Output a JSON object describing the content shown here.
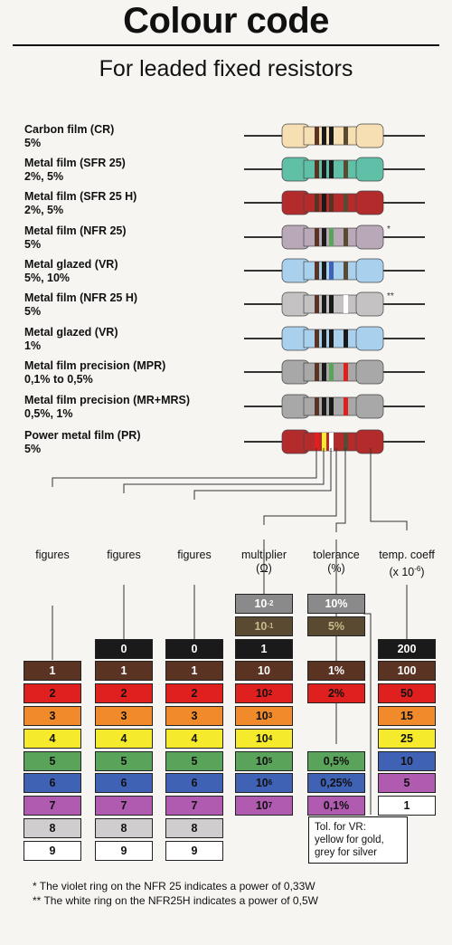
{
  "title": "Colour code",
  "subtitle": "For leaded fixed resistors",
  "colors": {
    "black": "#1a1a1a",
    "brown": "#5a3322",
    "red": "#e0201e",
    "orange": "#f08a2a",
    "yellow": "#f5ea2c",
    "green": "#5aa35a",
    "blue": "#3f62b5",
    "violet": "#b05ab0",
    "grey": "#cfcdcd",
    "white": "#ffffff",
    "silver": "#8a8a8a",
    "gold": "#5a4a32"
  },
  "resistors": [
    {
      "name": "Carbon film (CR)",
      "tol": "5%",
      "body": "#f6dfb2",
      "mark": ""
    },
    {
      "name": "Metal film (SFR 25)",
      "tol": "2%, 5%",
      "body": "#5fbfa7",
      "mark": ""
    },
    {
      "name": "Metal film (SFR 25 H)",
      "tol": "2%, 5%",
      "body": "#b32b2b",
      "mark": ""
    },
    {
      "name": "Metal film (NFR 25)",
      "tol": "5%",
      "body": "#b8a8b8",
      "mark": "*"
    },
    {
      "name": "Metal glazed (VR)",
      "tol": "5%, 10%",
      "body": "#a9d1ee",
      "mark": ""
    },
    {
      "name": "Metal film (NFR 25 H)",
      "tol": "5%",
      "body": "#c4c2c2",
      "mark": "**"
    },
    {
      "name": "Metal glazed (VR)",
      "tol": "1%",
      "body": "#a9d1ee",
      "mark": ""
    },
    {
      "name": "Metal film precision (MPR)",
      "tol": "0,1% to 0,5%",
      "body": "#a8a8a8",
      "mark": ""
    },
    {
      "name": "Metal film precision (MR+MRS)",
      "tol": "0,5%, 1%",
      "body": "#a8a8a8",
      "mark": ""
    },
    {
      "name": "Power metal film (PR)",
      "tol": "5%",
      "body": "#b32b2b",
      "mark": ""
    }
  ],
  "columns": [
    {
      "header": "figures",
      "unit": "",
      "cells": [
        {
          "c": "brown",
          "t": "1"
        },
        {
          "c": "red",
          "t": "2"
        },
        {
          "c": "orange",
          "t": "3"
        },
        {
          "c": "yellow",
          "t": "4"
        },
        {
          "c": "green",
          "t": "5"
        },
        {
          "c": "blue",
          "t": "6"
        },
        {
          "c": "violet",
          "t": "7"
        },
        {
          "c": "grey",
          "t": "8"
        },
        {
          "c": "white",
          "t": "9"
        }
      ]
    },
    {
      "header": "figures",
      "unit": "",
      "cells": [
        {
          "c": "black",
          "t": "0"
        },
        {
          "c": "brown",
          "t": "1"
        },
        {
          "c": "red",
          "t": "2"
        },
        {
          "c": "orange",
          "t": "3"
        },
        {
          "c": "yellow",
          "t": "4"
        },
        {
          "c": "green",
          "t": "5"
        },
        {
          "c": "blue",
          "t": "6"
        },
        {
          "c": "violet",
          "t": "7"
        },
        {
          "c": "grey",
          "t": "8"
        },
        {
          "c": "white",
          "t": "9"
        }
      ]
    },
    {
      "header": "figures",
      "unit": "",
      "cells": [
        {
          "c": "black",
          "t": "0"
        },
        {
          "c": "brown",
          "t": "1"
        },
        {
          "c": "red",
          "t": "2"
        },
        {
          "c": "orange",
          "t": "3"
        },
        {
          "c": "yellow",
          "t": "4"
        },
        {
          "c": "green",
          "t": "5"
        },
        {
          "c": "blue",
          "t": "6"
        },
        {
          "c": "violet",
          "t": "7"
        },
        {
          "c": "grey",
          "t": "8"
        },
        {
          "c": "white",
          "t": "9"
        }
      ]
    },
    {
      "header": "multiplier",
      "unit": "(Ω)",
      "cells": [
        {
          "c": "silver",
          "t": "10",
          "e": "-2"
        },
        {
          "c": "gold",
          "t": "10",
          "e": "-1"
        },
        {
          "c": "black",
          "t": "1"
        },
        {
          "c": "brown",
          "t": "10"
        },
        {
          "c": "red",
          "t": "10",
          "e": "2"
        },
        {
          "c": "orange",
          "t": "10",
          "e": "3"
        },
        {
          "c": "yellow",
          "t": "10",
          "e": "4"
        },
        {
          "c": "green",
          "t": "10",
          "e": "5"
        },
        {
          "c": "blue",
          "t": "10",
          "e": "6"
        },
        {
          "c": "violet",
          "t": "10",
          "e": "7"
        }
      ]
    },
    {
      "header": "tolerance",
      "unit": "(%)",
      "cells": [
        {
          "c": "silver",
          "t": "10%"
        },
        {
          "c": "gold",
          "t": "5%"
        },
        {
          "c": "",
          "t": ""
        },
        {
          "c": "brown",
          "t": "1%"
        },
        {
          "c": "red",
          "t": "2%"
        },
        {
          "c": "",
          "t": ""
        },
        {
          "c": "",
          "t": ""
        },
        {
          "c": "green",
          "t": "0,5%"
        },
        {
          "c": "blue",
          "t": "0,25%"
        },
        {
          "c": "violet",
          "t": "0,1%"
        }
      ]
    },
    {
      "header": "temp. coeff",
      "unit": "(x 10",
      "unit_exp": "-6",
      "unit_end": ")",
      "cells": [
        {
          "c": "",
          "t": ""
        },
        {
          "c": "",
          "t": ""
        },
        {
          "c": "black",
          "t": "200"
        },
        {
          "c": "brown",
          "t": "100"
        },
        {
          "c": "red",
          "t": "50"
        },
        {
          "c": "orange",
          "t": "15"
        },
        {
          "c": "yellow",
          "t": "25"
        },
        {
          "c": "blue",
          "t": "10"
        },
        {
          "c": "violet",
          "t": "5"
        },
        {
          "c": "white",
          "t": "1"
        }
      ]
    }
  ],
  "tol_note": {
    "line1": "Tol. for VR:",
    "line2": "yellow for gold,",
    "line3": "grey for silver"
  },
  "footnotes": [
    "* The violet ring on the NFR 25 indicates a power of 0,33W",
    "** The white ring on the NFR25H indicates a power of 0,5W"
  ]
}
